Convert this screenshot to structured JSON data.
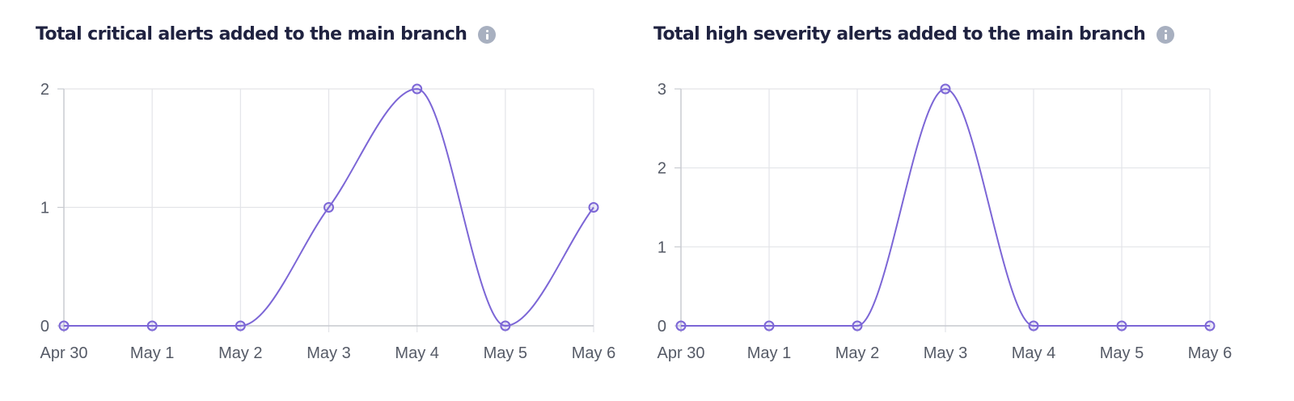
{
  "charts": [
    {
      "title": "Total critical alerts added to the main branch",
      "info_icon": "info-icon"
    },
    {
      "title": "Total high severity alerts added to the main branch",
      "info_icon": "info-icon"
    }
  ],
  "colors": {
    "line": "#7c66d6",
    "grid": "#e3e4e8",
    "axis": "#c8cad0",
    "title": "#1f2240",
    "tick": "#555a66",
    "info_icon": "#a8b0c0"
  },
  "chart_data": [
    {
      "type": "line",
      "title": "Total critical alerts added to the main branch",
      "categories": [
        "Apr 30",
        "May 1",
        "May 2",
        "May 3",
        "May 4",
        "May 5",
        "May 6"
      ],
      "series": [
        {
          "values": [
            0,
            0,
            0,
            1,
            2,
            0,
            1
          ]
        }
      ],
      "yticks": [
        0,
        1,
        2
      ],
      "ylim": [
        0,
        2
      ],
      "grid": true,
      "legend": "none"
    },
    {
      "type": "line",
      "title": "Total high severity alerts added to the main branch",
      "categories": [
        "Apr 30",
        "May 1",
        "May 2",
        "May 3",
        "May 4",
        "May 5",
        "May 6"
      ],
      "series": [
        {
          "values": [
            0,
            0,
            0,
            3,
            0,
            0,
            0
          ]
        }
      ],
      "yticks": [
        0,
        1,
        2,
        3
      ],
      "ylim": [
        0,
        3
      ],
      "grid": true,
      "legend": "none"
    }
  ]
}
